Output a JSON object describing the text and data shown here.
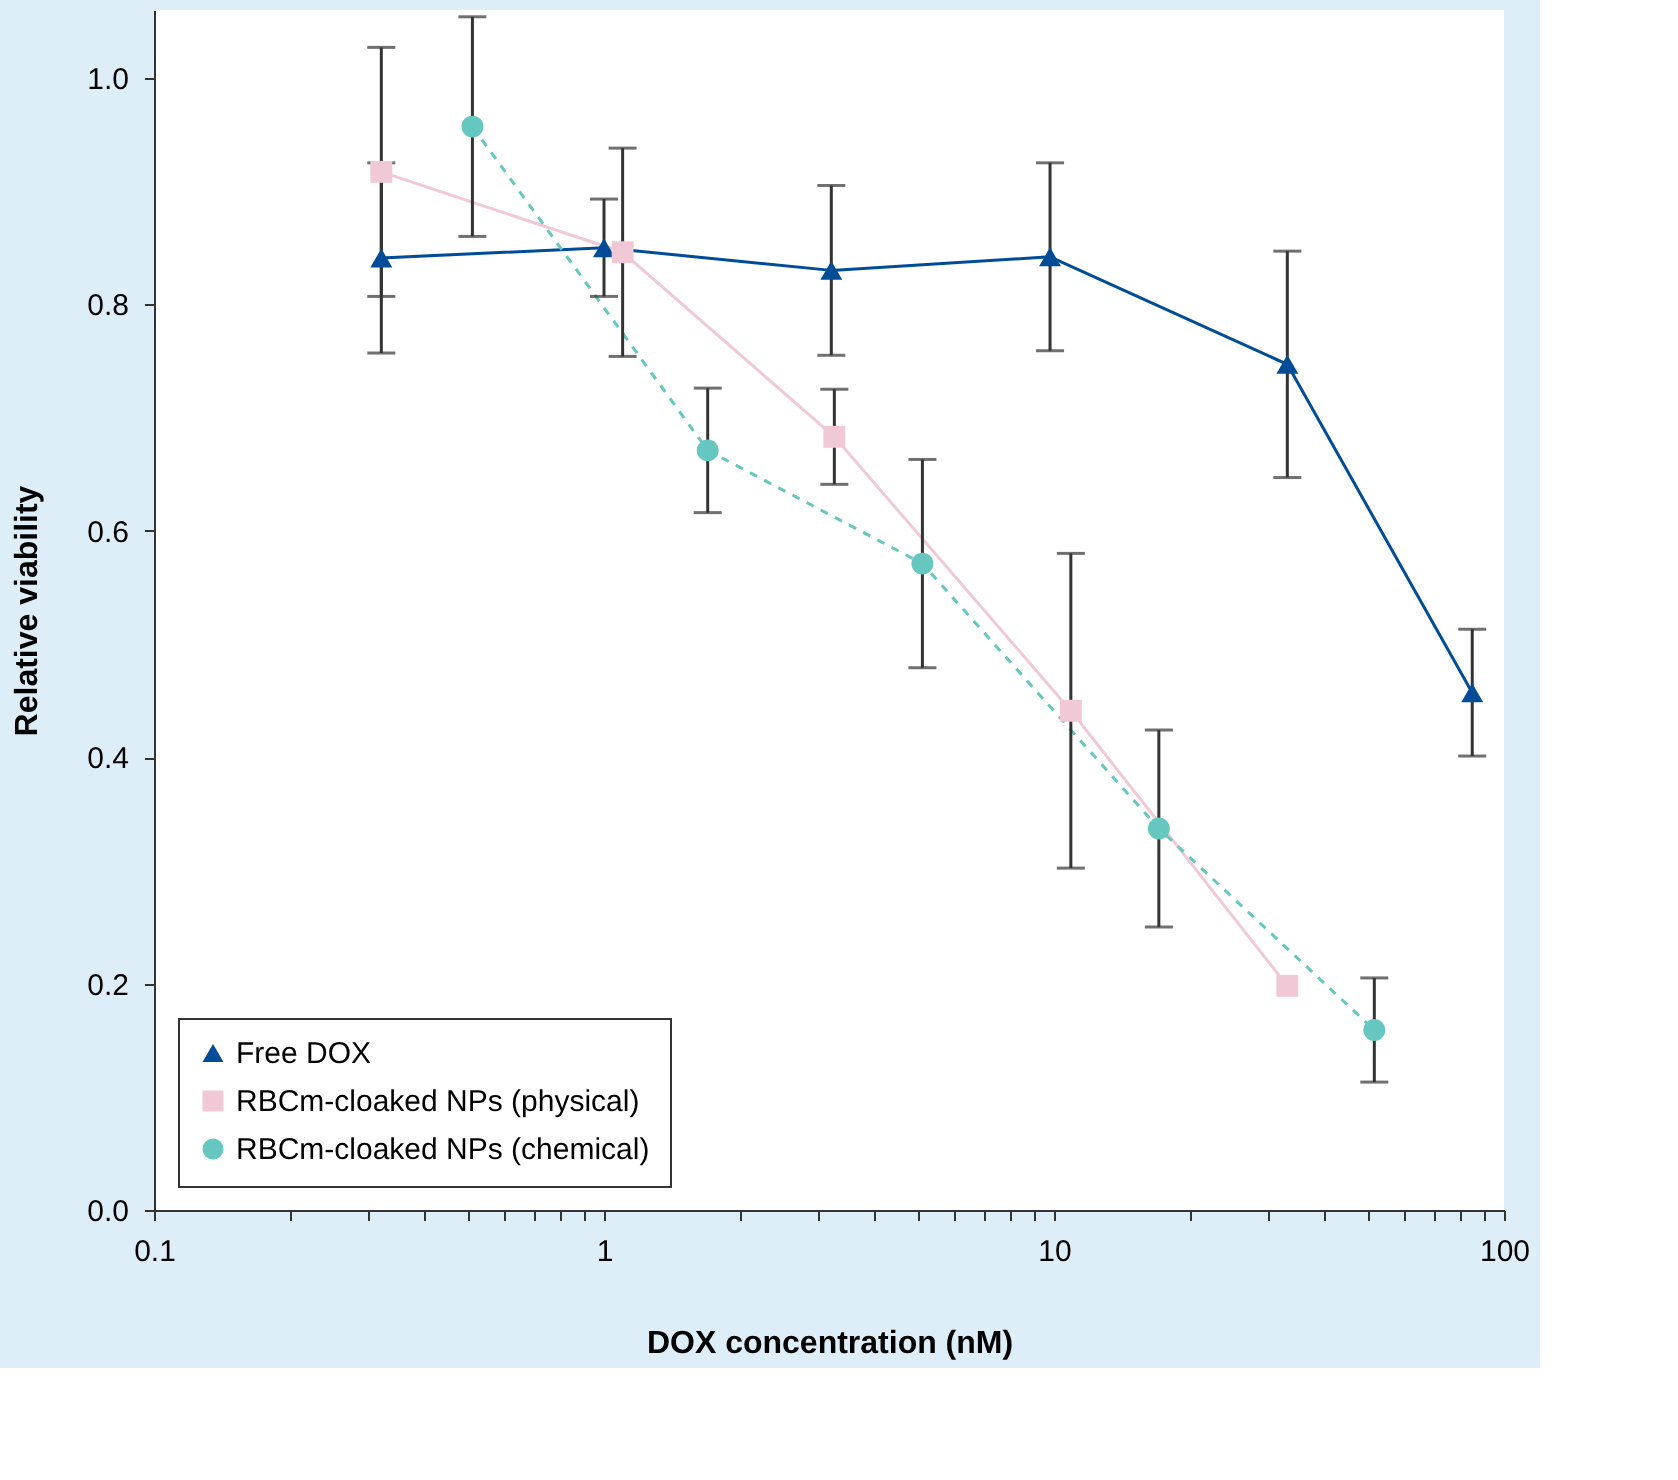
{
  "chart_data": {
    "type": "line",
    "xlabel": "DOX concentration (nM)",
    "ylabel": "Relative viability",
    "log": "x",
    "xlim": [
      0.1,
      100
    ],
    "ylim": [
      0,
      1.06
    ],
    "xticks": [
      0.1,
      {
        "value": 0.2,
        "label": null
      },
      {
        "value": 0.3,
        "label": null
      },
      {
        "value": 0.4,
        "label": null
      },
      {
        "value": 0.5,
        "label": null
      },
      {
        "value": 0.6,
        "label": null
      },
      {
        "value": 0.7,
        "label": null
      },
      {
        "value": 0.8,
        "label": null
      },
      {
        "value": 0.9,
        "label": null
      },
      1,
      {
        "value": 2,
        "label": null
      },
      {
        "value": 3,
        "label": null
      },
      {
        "value": 4,
        "label": null
      },
      {
        "value": 5,
        "label": null
      },
      {
        "value": 6,
        "label": null
      },
      {
        "value": 7,
        "label": null
      },
      {
        "value": 8,
        "label": null
      },
      {
        "value": 9,
        "label": null
      },
      10,
      {
        "value": 20,
        "label": null
      },
      {
        "value": 30,
        "label": null
      },
      {
        "value": 40,
        "label": null
      },
      {
        "value": 50,
        "label": null
      },
      {
        "value": 60,
        "label": null
      },
      {
        "value": 70,
        "label": null
      },
      {
        "value": 80,
        "label": null
      },
      {
        "value": 90,
        "label": null
      },
      100
    ],
    "yticks": [
      {
        "value": 0,
        "label": "0.0"
      },
      {
        "value": 0.2,
        "label": "0.2"
      },
      {
        "value": 0.4,
        "label": "0.4"
      },
      {
        "value": 0.6,
        "label": "0.6"
      },
      {
        "value": 0.8,
        "label": "0.8"
      },
      {
        "value": 1.0,
        "label": "1.0"
      }
    ],
    "grid": false,
    "legend": "bottom left",
    "series": [
      {
        "name": "Free DOX",
        "color": "#004c97",
        "marker": "triangle",
        "line_style": "solid",
        "x": [
          0.32,
          1.0,
          3.2,
          9.8,
          33,
          85
        ],
        "values": [
          0.841,
          0.85,
          0.83,
          0.842,
          0.747,
          0.457
        ],
        "errors": [
          0.084,
          0.043,
          0.075,
          0.083,
          0.1,
          0.056
        ]
      },
      {
        "name": "RBCm-cloaked NPs (physical)",
        "color": "#f0c8d6",
        "marker": "square",
        "line_style": "solid",
        "x": [
          0.32,
          1.1,
          3.25,
          10.9,
          33
        ],
        "values": [
          0.917,
          0.846,
          0.683,
          0.441,
          0.198
        ],
        "errors": [
          0.11,
          0.092,
          0.042,
          0.139,
          null
        ]
      },
      {
        "name": "RBCm-cloaked NPs (chemical)",
        "color": "#66c6c0",
        "marker": "circle",
        "line_style": "dashed",
        "x": [
          0.51,
          1.7,
          5.1,
          17.1,
          51.5
        ],
        "values": [
          0.957,
          0.671,
          0.571,
          0.337,
          0.159
        ],
        "errors": [
          0.097,
          0.055,
          0.092,
          0.087,
          0.046
        ]
      }
    ]
  }
}
